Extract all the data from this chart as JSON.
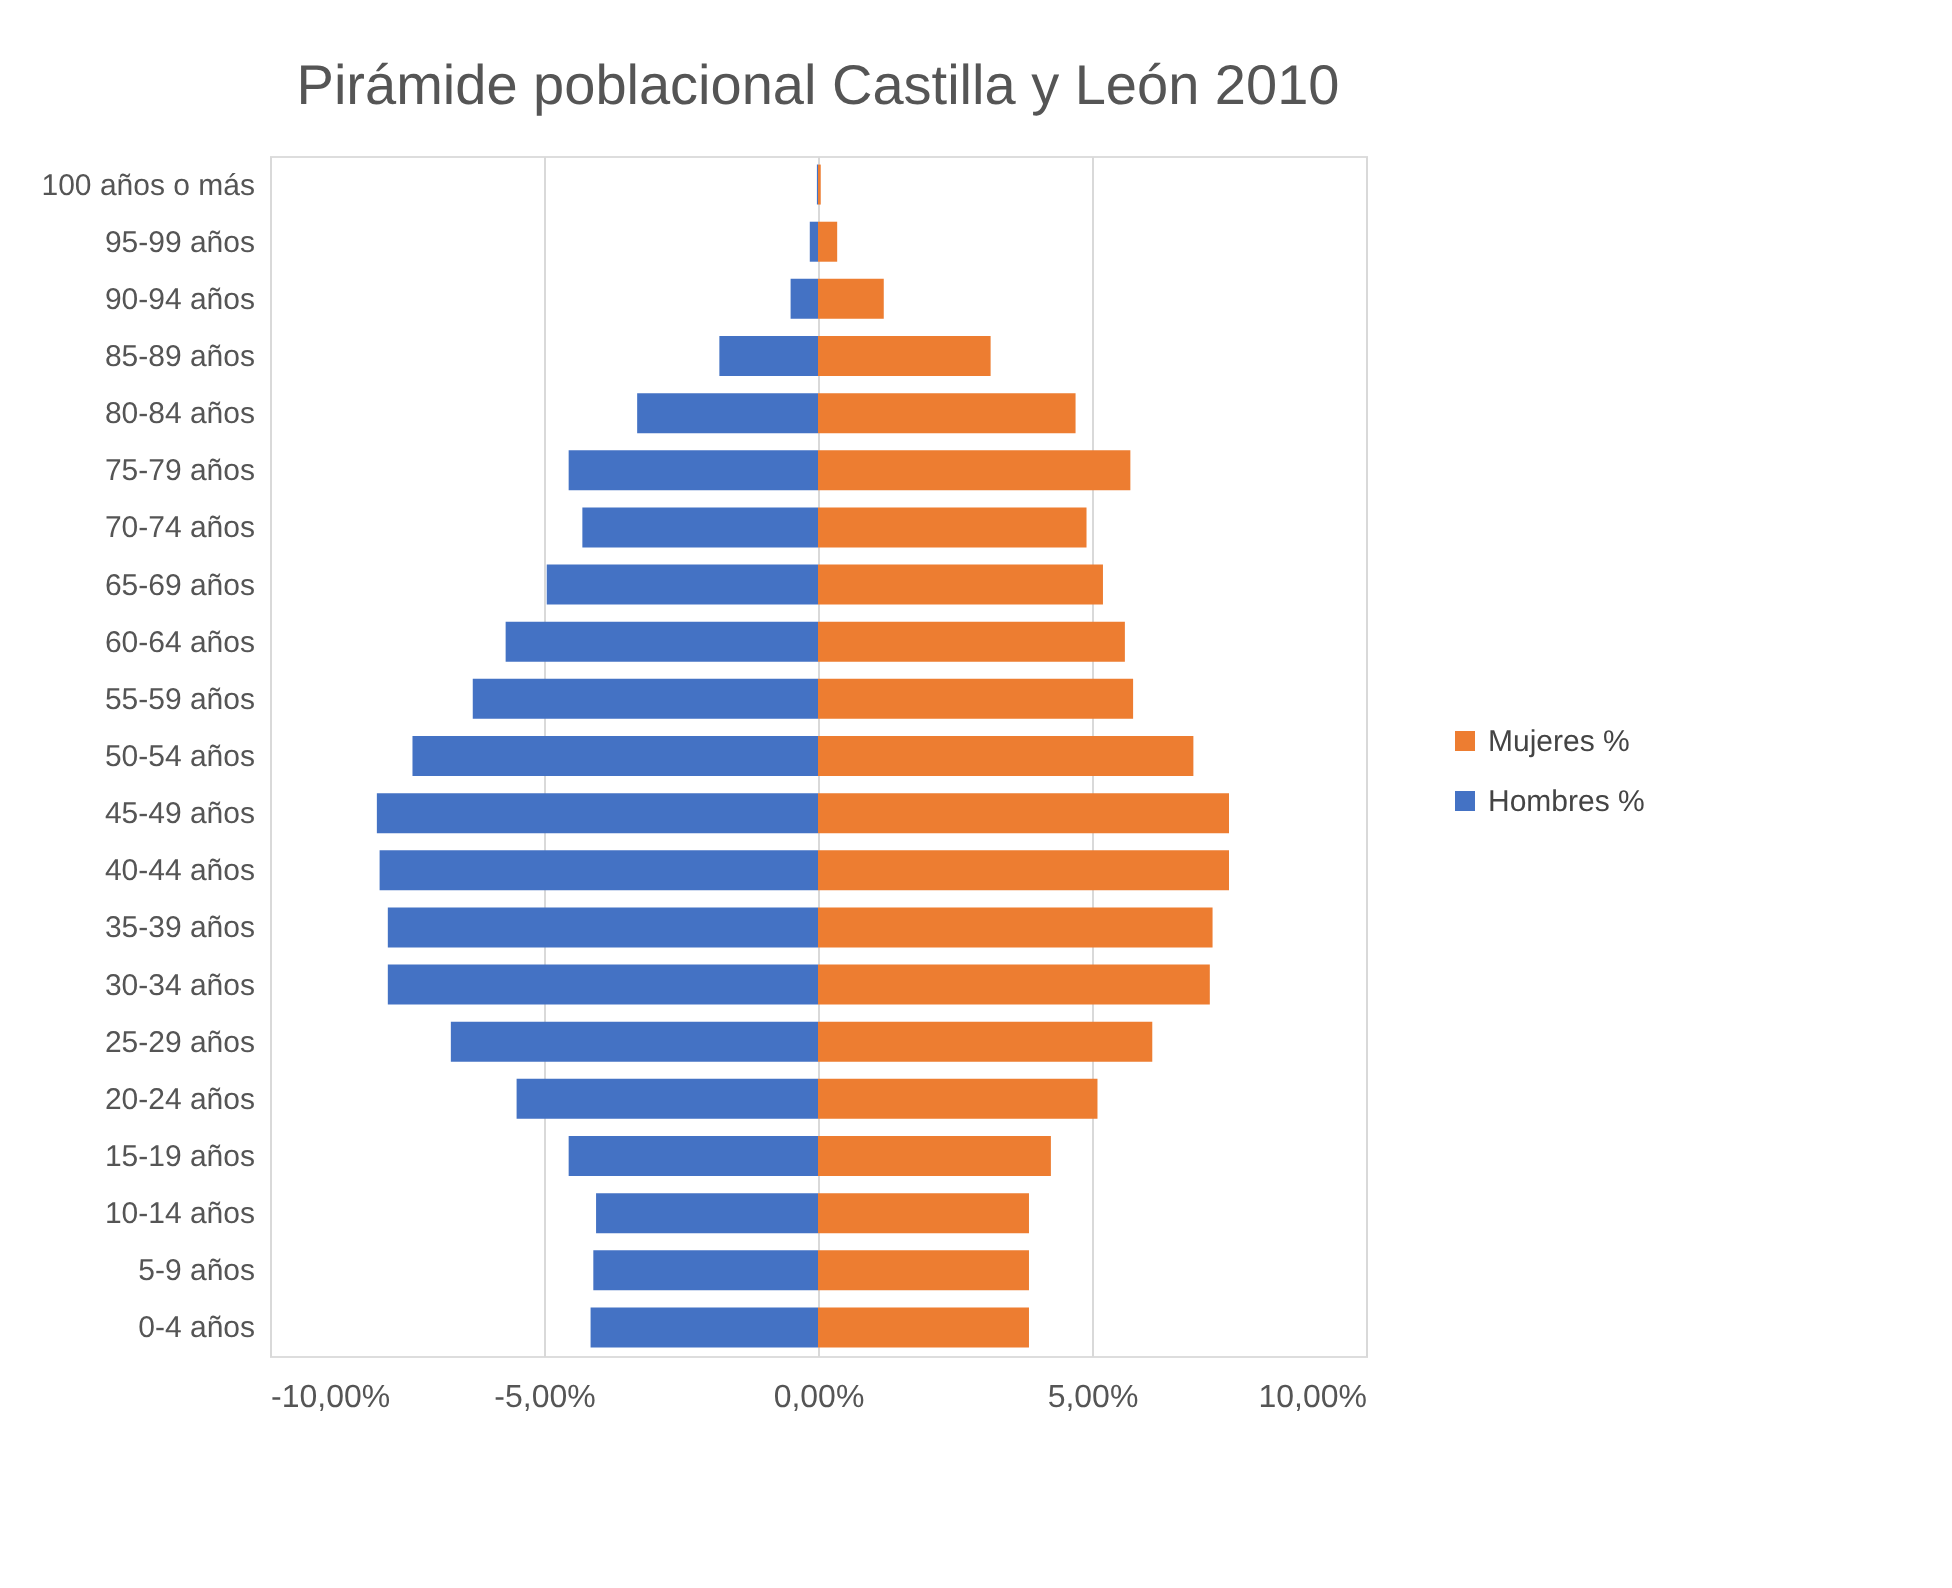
{
  "chart_data": {
    "type": "bar",
    "orientation": "horizontal",
    "title": "Pirámide poblacional Castilla y León 2010",
    "categories": [
      "100 años o más",
      "95-99 años",
      "90-94 años",
      "85-89 años",
      "80-84 años",
      "75-79 años",
      "70-74 años",
      "65-69 años",
      "60-64 años",
      "55-59 años",
      "50-54 años",
      "45-49 años",
      "40-44 años",
      "35-39 años",
      "30-34 años",
      "25-29 años",
      "20-24 años",
      "15-19 años",
      "10-14 años",
      "5-9 años",
      "0-4 años"
    ],
    "series": [
      {
        "name": "Mujeres %",
        "color": "#ed7d31",
        "values": [
          0.05,
          0.35,
          1.2,
          3.15,
          4.7,
          5.7,
          4.9,
          5.2,
          5.6,
          5.75,
          6.85,
          7.5,
          7.5,
          7.2,
          7.15,
          6.1,
          5.1,
          4.25,
          3.85,
          3.85,
          3.85
        ]
      },
      {
        "name": "Hombres %",
        "color": "#4472c4",
        "values": [
          -0.02,
          -0.15,
          -0.5,
          -1.8,
          -3.3,
          -4.55,
          -4.3,
          -4.95,
          -5.7,
          -6.3,
          -7.4,
          -8.05,
          -8.0,
          -7.85,
          -7.85,
          -6.7,
          -5.5,
          -4.55,
          -4.05,
          -4.1,
          -4.15
        ]
      }
    ],
    "xlim": [
      -10,
      10
    ],
    "xticks": [
      {
        "value": -10,
        "label": "-10,00%"
      },
      {
        "value": -5,
        "label": "-5,00%"
      },
      {
        "value": 0,
        "label": "0,00%"
      },
      {
        "value": 5,
        "label": "5,00%"
      },
      {
        "value": 10,
        "label": "10,00%"
      }
    ],
    "grid": "x",
    "legend": "right",
    "stacked": true
  }
}
